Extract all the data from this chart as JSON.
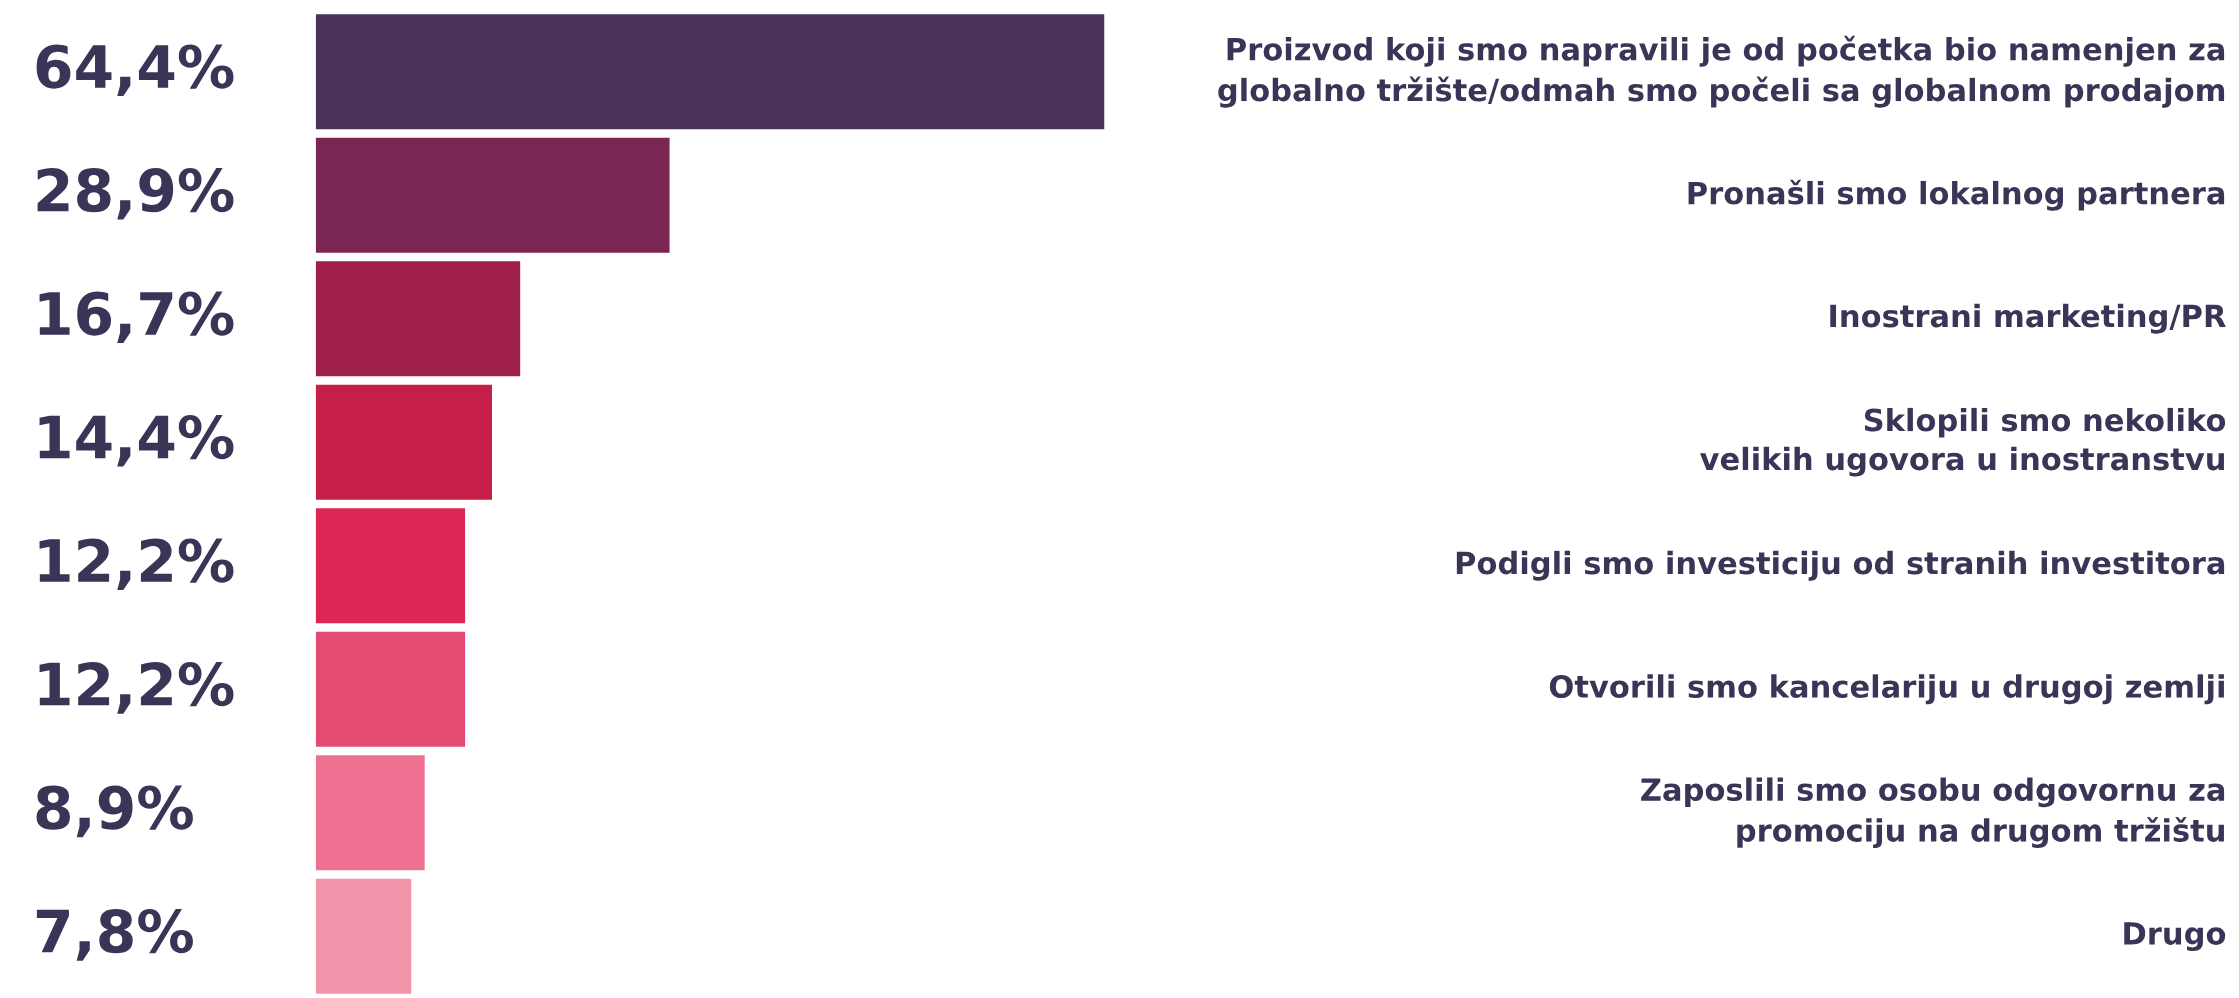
{
  "chart_data": {
    "type": "bar",
    "orientation": "horizontal",
    "categories": [
      "Proizvod koji smo napravili je od početka bio namenjen za\nglobalno tržište/odmah smo počeli sa globalnom prodajom",
      "Pronašli smo lokalnog partnera",
      "Inostrani marketing/PR",
      "Sklopili smo nekoliko\nvelikih ugovora u inostranstvu",
      "Podigli smo investiciju od stranih investitora",
      "Otvorili smo kancelariju u drugoj zemlji",
      "Zaposlili smo osobu odgovornu za\npromociju na drugom tržištu",
      "Drugo"
    ],
    "values": [
      64.4,
      28.9,
      16.7,
      14.4,
      12.2,
      12.2,
      8.9,
      7.8
    ],
    "value_labels": [
      "64,4%",
      "28,9%",
      "16,7%",
      "14,4%",
      "12,2%",
      "12,2%",
      "8,9%",
      "7,8%"
    ],
    "colors": [
      "#4a3358",
      "#7a2552",
      "#a01e4c",
      "#c51f49",
      "#dc2655",
      "#e44b72",
      "#ee7191",
      "#f293aa"
    ]
  }
}
